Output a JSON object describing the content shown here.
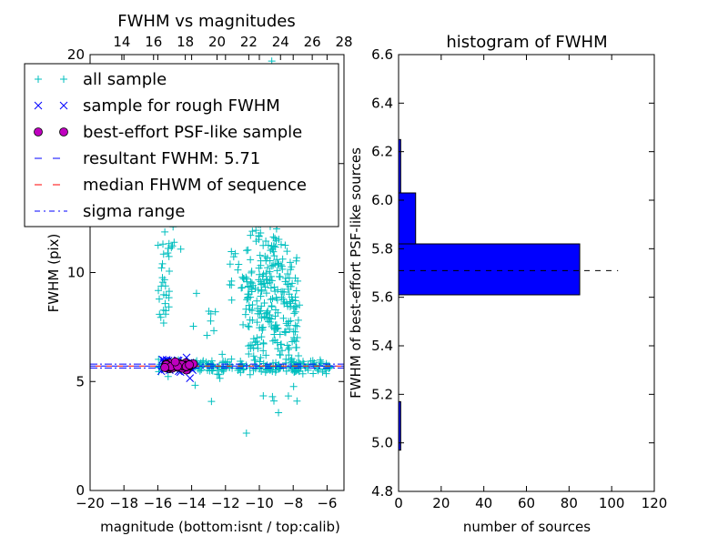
{
  "chart_data": [
    {
      "type": "scatter",
      "title": "FWHM vs magnitudes",
      "xlabel": "magnitude (bottom:isnt / top:calib)",
      "ylabel": "FWHM (pix)",
      "xlim": [
        -20,
        -5
      ],
      "ylim": [
        0,
        20
      ],
      "xticks": [
        -20,
        -18,
        -16,
        -14,
        -12,
        -10,
        -8,
        -6
      ],
      "xticklabels": [
        "−20",
        "−18",
        "−16",
        "−14",
        "−12",
        "−10",
        "−8",
        "−6"
      ],
      "yticks": [
        0,
        5,
        10,
        15,
        20
      ],
      "yticklabels": [
        "0",
        "5",
        "10",
        "",
        "20"
      ],
      "top_xlim": [
        12,
        28
      ],
      "top_xticks": [
        14,
        16,
        18,
        20,
        22,
        24,
        26,
        28
      ],
      "top_xticklabels": [
        "14",
        "16",
        "18",
        "20",
        "22",
        "24",
        "26",
        "28"
      ],
      "grid": false,
      "legend_position": "top",
      "series": [
        {
          "name": "all sample",
          "marker": "+",
          "color": "#00bfbf",
          "clusters": [
            {
              "x_range": [
                -16.0,
                -5.8
              ],
              "y_center": 5.7,
              "y_spread": 0.15,
              "count": 190
            },
            {
              "x_range": [
                -10.8,
                -7.6
              ],
              "y_center": 8.2,
              "y_spread": 1.6,
              "count": 230
            },
            {
              "x_range": [
                -10.2,
                -8.7
              ],
              "y_center": 12.5,
              "y_spread": 2.4,
              "count": 110
            },
            {
              "x_range": [
                -11.8,
                -10.6
              ],
              "y_center": 10.0,
              "y_spread": 1.6,
              "count": 25
            },
            {
              "x_range": [
                -16.0,
                -15.3
              ],
              "y_center": 9.2,
              "y_spread": 1.5,
              "count": 30
            },
            {
              "x_range": [
                -15.8,
                -14.5
              ],
              "y_center": 13.0,
              "y_spread": 1.8,
              "count": 18
            },
            {
              "x_range": [
                -14.0,
                -12.0
              ],
              "y_center": 7.5,
              "y_spread": 2.0,
              "count": 15
            },
            {
              "x_range": [
                -9.8,
                -8.2
              ],
              "y_center": 18.2,
              "y_spread": 1.3,
              "count": 14
            }
          ]
        },
        {
          "name": "sample for rough FWHM",
          "marker": "x",
          "color": "#0000ff",
          "x_range": [
            -15.8,
            -13.9
          ],
          "y_center": 5.75,
          "y_spread": 0.15,
          "count": 40
        },
        {
          "name": "best-effort PSF-like sample",
          "marker": "o",
          "color": "#bf00bf",
          "x_range": [
            -15.6,
            -13.9
          ],
          "y_center": 5.72,
          "y_spread": 0.08,
          "count": 45
        },
        {
          "name": "resultant FWHM: 5.71",
          "type": "hline",
          "y": 5.71,
          "style": "dashed",
          "color": "#0000ff"
        },
        {
          "name": "median FHWM of sequence",
          "type": "hline",
          "y": 5.71,
          "style": "dashed",
          "color": "#ff0000"
        },
        {
          "name": "sigma range",
          "type": "hline",
          "y": [
            5.62,
            5.8
          ],
          "style": "dashdot",
          "color": "#0000ff"
        }
      ]
    },
    {
      "type": "bar",
      "orientation": "horizontal",
      "title": "histogram of FWHM",
      "xlabel": "number of sources",
      "ylabel": "FWHM of best-effort PSF-like sources",
      "xlim": [
        0,
        120
      ],
      "ylim": [
        4.8,
        6.6
      ],
      "xticks": [
        0,
        20,
        40,
        60,
        80,
        100,
        120
      ],
      "yticks": [
        4.8,
        5.0,
        5.2,
        5.4,
        5.6,
        5.8,
        6.0,
        6.2,
        6.4,
        6.6
      ],
      "yticklabels": [
        "4.8",
        "5.0",
        "5.2",
        "5.4",
        "5.6",
        "5.8",
        "6.0",
        "6.2",
        "6.4",
        "6.6"
      ],
      "grid": false,
      "bar_color": "#0000ff",
      "bins": [
        {
          "y0": 4.97,
          "y1": 5.17,
          "count": 1
        },
        {
          "y0": 5.61,
          "y1": 5.82,
          "count": 85
        },
        {
          "y0": 5.82,
          "y1": 6.03,
          "count": 8
        },
        {
          "y0": 6.03,
          "y1": 6.25,
          "count": 1
        }
      ],
      "median_line": {
        "y": 5.71,
        "x_range": [
          0,
          103
        ],
        "style": "dashed",
        "color": "#000000"
      }
    }
  ]
}
